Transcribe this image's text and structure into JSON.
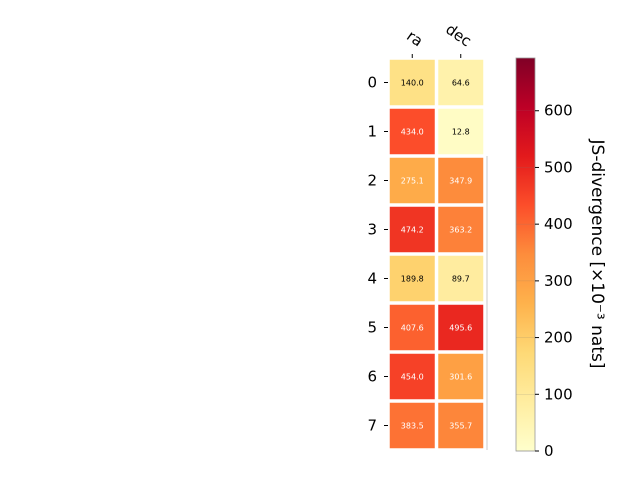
{
  "chart_data": {
    "type": "heatmap",
    "columns": [
      "ra",
      "dec"
    ],
    "rows": [
      "0",
      "1",
      "2",
      "3",
      "4",
      "5",
      "6",
      "7"
    ],
    "values": [
      [
        140.0,
        64.6
      ],
      [
        434.0,
        12.8
      ],
      [
        275.1,
        347.9
      ],
      [
        474.2,
        363.2
      ],
      [
        189.8,
        89.7
      ],
      [
        407.6,
        495.6
      ],
      [
        454.0,
        301.6
      ],
      [
        383.5,
        355.7
      ]
    ],
    "value_labels": [
      [
        "140.0",
        "64.6"
      ],
      [
        "434.0",
        "12.8"
      ],
      [
        "275.1",
        "347.9"
      ],
      [
        "474.2",
        "363.2"
      ],
      [
        "189.8",
        "89.7"
      ],
      [
        "407.6",
        "495.6"
      ],
      [
        "454.0",
        "301.6"
      ],
      [
        "383.5",
        "355.7"
      ]
    ],
    "colorbar": {
      "label": "JS-divergence [×10⁻³ nats]",
      "range": [
        0,
        693
      ],
      "ticks": [
        0,
        100,
        200,
        300,
        400,
        500,
        600
      ],
      "tick_labels": [
        "0",
        "100",
        "200",
        "300",
        "400",
        "500",
        "600"
      ],
      "colormap": "YlOrRd",
      "position": "right"
    },
    "grid": false
  },
  "colors": {
    "text_dark": "#000000",
    "text_light": "#ffffff",
    "cell_border": "#ffffff"
  }
}
